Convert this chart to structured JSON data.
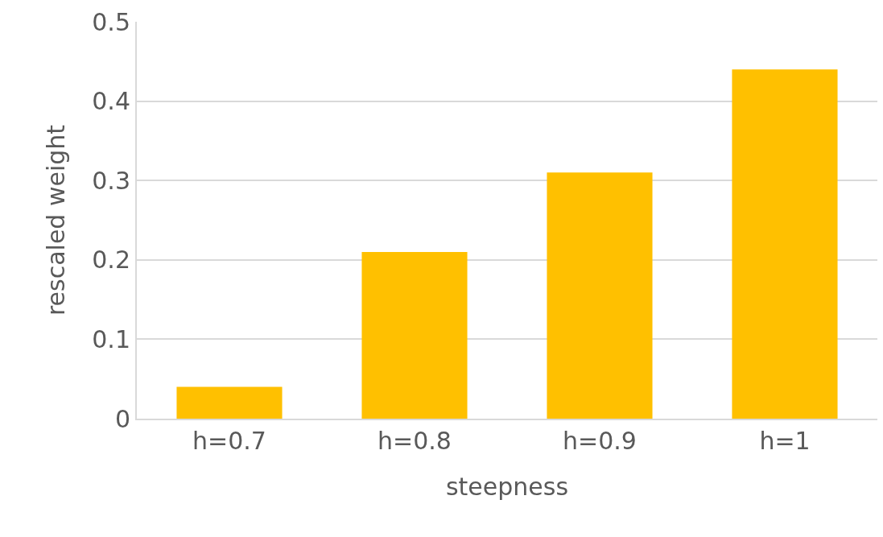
{
  "chart_data": {
    "type": "bar",
    "xlabel": "steepness",
    "ylabel": "rescaled weight",
    "categories": [
      "h=0.7",
      "h=0.8",
      "h=0.9",
      "h=1"
    ],
    "values": [
      0.04,
      0.21,
      0.31,
      0.44
    ],
    "color": "#ffc000",
    "ylim": [
      0,
      0.5
    ],
    "yticks": [
      0,
      0.1,
      0.2,
      0.3,
      0.4,
      0.5
    ],
    "grid": "y"
  }
}
